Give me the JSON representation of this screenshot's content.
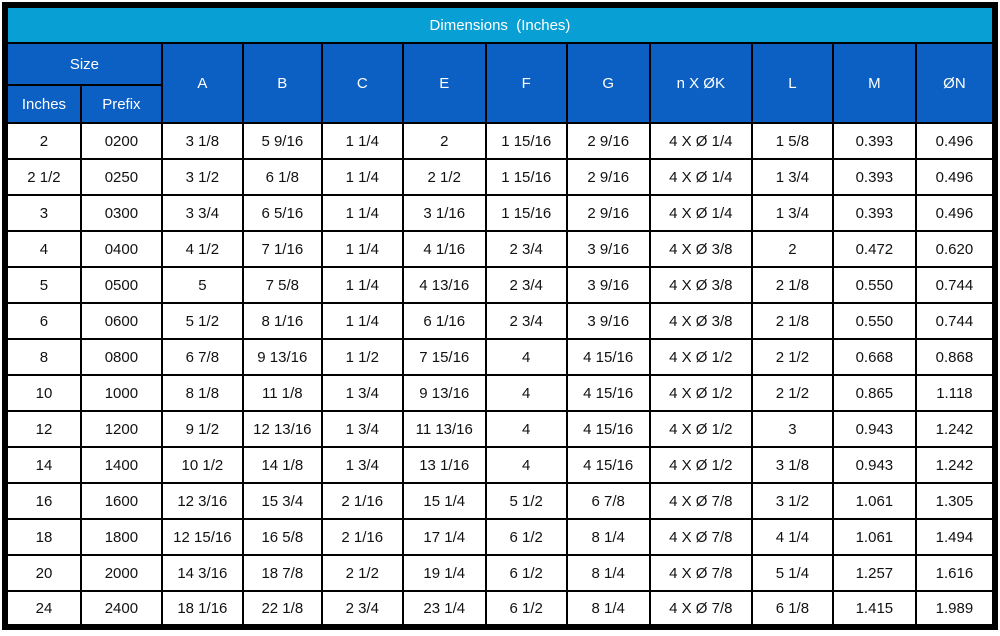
{
  "title": "Dimensions  (Inches)",
  "header": {
    "size_group_label": "Size",
    "size_subcolumns": [
      "Inches",
      "Prefix"
    ],
    "dimension_columns": [
      "A",
      "B",
      "C",
      "E",
      "F",
      "G",
      "n X ØK",
      "L",
      "M",
      "ØN"
    ]
  },
  "rows": [
    [
      "2",
      "0200",
      "3 1/8",
      "5 9/16",
      "1 1/4",
      "2",
      "1 15/16",
      "2 9/16",
      "4 X Ø 1/4",
      "1 5/8",
      "0.393",
      "0.496"
    ],
    [
      "2 1/2",
      "0250",
      "3 1/2",
      "6 1/8",
      "1 1/4",
      "2 1/2",
      "1 15/16",
      "2 9/16",
      "4 X Ø 1/4",
      "1 3/4",
      "0.393",
      "0.496"
    ],
    [
      "3",
      "0300",
      "3 3/4",
      "6 5/16",
      "1 1/4",
      "3 1/16",
      "1 15/16",
      "2 9/16",
      "4 X Ø 1/4",
      "1 3/4",
      "0.393",
      "0.496"
    ],
    [
      "4",
      "0400",
      "4 1/2",
      "7 1/16",
      "1 1/4",
      "4 1/16",
      "2 3/4",
      "3 9/16",
      "4 X Ø 3/8",
      "2",
      "0.472",
      "0.620"
    ],
    [
      "5",
      "0500",
      "5",
      "7 5/8",
      "1 1/4",
      "4 13/16",
      "2 3/4",
      "3 9/16",
      "4 X Ø 3/8",
      "2 1/8",
      "0.550",
      "0.744"
    ],
    [
      "6",
      "0600",
      "5 1/2",
      "8 1/16",
      "1 1/4",
      "6 1/16",
      "2 3/4",
      "3 9/16",
      "4 X Ø 3/8",
      "2 1/8",
      "0.550",
      "0.744"
    ],
    [
      "8",
      "0800",
      "6 7/8",
      "9 13/16",
      "1 1/2",
      "7 15/16",
      "4",
      "4 15/16",
      "4 X Ø 1/2",
      "2 1/2",
      "0.668",
      "0.868"
    ],
    [
      "10",
      "1000",
      "8 1/8",
      "11 1/8",
      "1 3/4",
      "9 13/16",
      "4",
      "4 15/16",
      "4 X Ø 1/2",
      "2 1/2",
      "0.865",
      "1.118"
    ],
    [
      "12",
      "1200",
      "9 1/2",
      "12 13/16",
      "1 3/4",
      "11 13/16",
      "4",
      "4 15/16",
      "4 X Ø 1/2",
      "3",
      "0.943",
      "1.242"
    ],
    [
      "14",
      "1400",
      "10 1/2",
      "14 1/8",
      "1 3/4",
      "13 1/16",
      "4",
      "4 15/16",
      "4 X Ø 1/2",
      "3 1/8",
      "0.943",
      "1.242"
    ],
    [
      "16",
      "1600",
      "12 3/16",
      "15 3/4",
      "2 1/16",
      "15 1/4",
      "5 1/2",
      "6 7/8",
      "4 X Ø 7/8",
      "3 1/2",
      "1.061",
      "1.305"
    ],
    [
      "18",
      "1800",
      "12 15/16",
      "16 5/8",
      "2 1/16",
      "17 1/4",
      "6 1/2",
      "8 1/4",
      "4 X Ø 7/8",
      "4 1/4",
      "1.061",
      "1.494"
    ],
    [
      "20",
      "2000",
      "14 3/16",
      "18 7/8",
      "2 1/2",
      "19 1/4",
      "6 1/2",
      "8 1/4",
      "4 X Ø 7/8",
      "5 1/4",
      "1.257",
      "1.616"
    ],
    [
      "24",
      "2400",
      "18 1/16",
      "22 1/8",
      "2 3/4",
      "23 1/4",
      "6 1/2",
      "8 1/4",
      "4 X Ø 7/8",
      "6 1/8",
      "1.415",
      "1.989"
    ]
  ],
  "colors": {
    "title_bar_bg": "#089FD4",
    "header_bg": "#0C60C4",
    "header_text": "#FFFFFF",
    "grid_border": "#000000",
    "cell_bg": "#FFFFFF",
    "cell_text": "#111111"
  }
}
